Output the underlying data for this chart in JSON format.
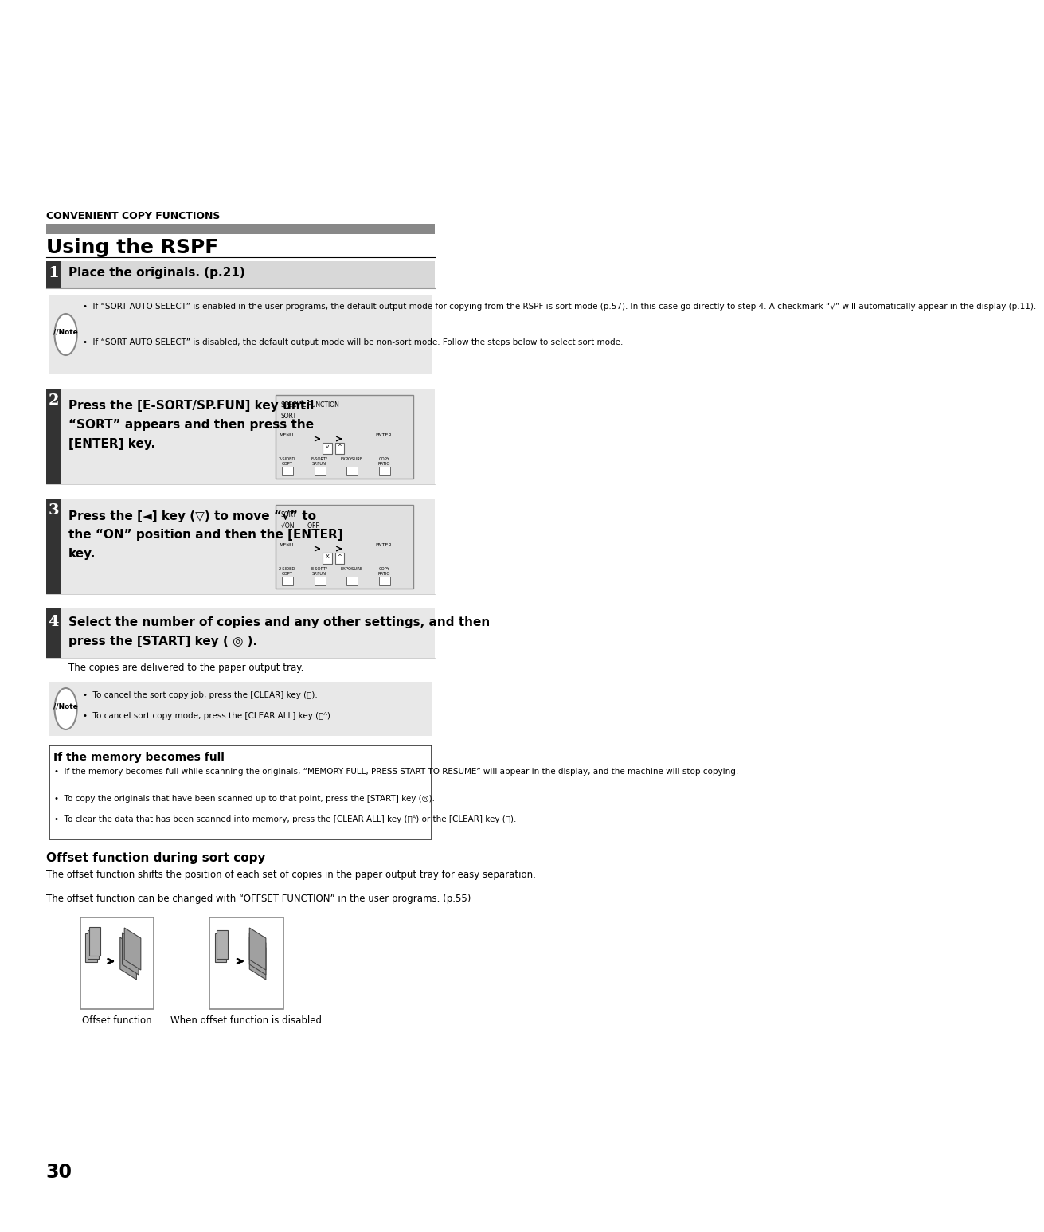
{
  "bg_color": "#ffffff",
  "page_number": "30",
  "section_header": "CONVENIENT COPY FUNCTIONS",
  "section_title": "Using the RSPF",
  "step1_number": "1",
  "step1_text": "Place the originals. (p.21)",
  "note1_bullet1": "If “SORT AUTO SELECT” is enabled in the user programs, the default output mode for copying from the RSPF is sort mode (p.57). In this case go directly to step 4. A checkmark “√” will automatically appear in the display (p.11).",
  "note1_bullet2": "If “SORT AUTO SELECT” is disabled, the default output mode will be non-sort mode. Follow the steps below to select sort mode.",
  "step2_number": "2",
  "step2_line1": "Press the [E-SORT/SP.FUN] key until",
  "step2_line2": "“SORT” appears and then press the",
  "step2_line3": "[ENTER] key.",
  "step3_number": "3",
  "step3_line1": "Press the [◄] key (▽) to move “√” to",
  "step3_line2": "the “ON” position and then the [ENTER]",
  "step3_line3": "key.",
  "step4_number": "4",
  "step4_line1": "Select the number of copies and any other settings, and then",
  "step4_line2": "press the [START] key ( ◎ ).",
  "step4_subtext": "The copies are delivered to the paper output tray.",
  "note2_bullet1": "To cancel the sort copy job, press the [CLEAR] key (Ⓒ).",
  "note2_bullet2": "To cancel sort copy mode, press the [CLEAR ALL] key (Ⓒᴬ).",
  "memory_title": "If the memory becomes full",
  "memory_bullet1": "If the memory becomes full while scanning the originals, “MEMORY FULL, PRESS START TO RESUME” will appear in the display, and the machine will stop copying.",
  "memory_bullet2": "To copy the originals that have been scanned up to that point, press the [START] key (◎).",
  "memory_bullet3": "To clear the data that has been scanned into memory, press the [CLEAR ALL] key (Ⓒᴬ) or the [CLEAR] key (Ⓒ).",
  "offset_title": "Offset function during sort copy",
  "offset_text1": "The offset function shifts the position of each set of copies in the paper output tray for easy separation.",
  "offset_text2": "The offset function can be changed with “OFFSET FUNCTION” in the user programs. (p.55)",
  "offset_label1": "Offset function",
  "offset_label2": "When offset function is disabled"
}
